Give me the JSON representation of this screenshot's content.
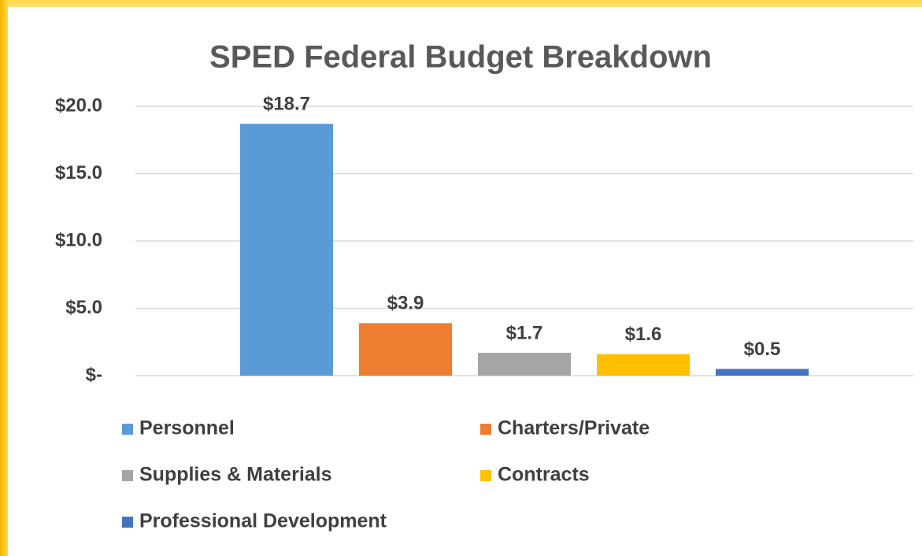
{
  "chart_data": {
    "type": "bar",
    "title": "SPED Federal Budget Breakdown",
    "categories": [
      null
    ],
    "series": [
      {
        "name": "Personnel",
        "color": "#5b9bd5",
        "values": [
          18.7
        ],
        "value_labels": [
          "$18.7"
        ]
      },
      {
        "name": "Charters/Private",
        "color": "#ed7d31",
        "values": [
          3.9
        ],
        "value_labels": [
          "$3.9"
        ]
      },
      {
        "name": "Supplies & Materials",
        "color": "#a5a5a5",
        "values": [
          1.7
        ],
        "value_labels": [
          "$1.7"
        ]
      },
      {
        "name": "Contracts",
        "color": "#ffc000",
        "values": [
          1.6
        ],
        "value_labels": [
          "$1.6"
        ]
      },
      {
        "name": "Professional Development",
        "color": "#4472c4",
        "values": [
          0.5
        ],
        "value_labels": [
          "$0.5"
        ]
      }
    ],
    "ylim": [
      0,
      20
    ],
    "yticks": [
      {
        "value": 0,
        "label": "$-"
      },
      {
        "value": 5,
        "label": "$5.0"
      },
      {
        "value": 10,
        "label": "$10.0"
      },
      {
        "value": 15,
        "label": "$15.0"
      },
      {
        "value": 20,
        "label": "$20.0"
      }
    ],
    "grid": true,
    "legend": "bottom"
  }
}
